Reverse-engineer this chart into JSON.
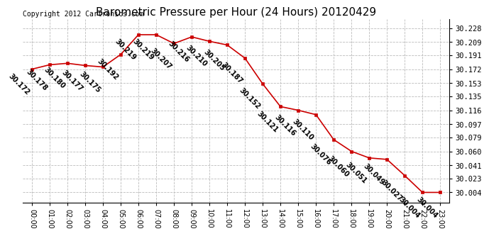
{
  "title": "Barometric Pressure per Hour (24 Hours) 20120429",
  "copyright": "Copyright 2012 Cartronics.com",
  "hours": [
    "00:00",
    "01:00",
    "02:00",
    "03:00",
    "04:00",
    "05:00",
    "06:00",
    "07:00",
    "08:00",
    "09:00",
    "10:00",
    "11:00",
    "12:00",
    "13:00",
    "14:00",
    "15:00",
    "16:00",
    "17:00",
    "18:00",
    "19:00",
    "20:00",
    "21:00",
    "22:00",
    "23:00"
  ],
  "values": [
    30.172,
    30.178,
    30.18,
    30.177,
    30.175,
    30.192,
    30.219,
    30.219,
    30.207,
    30.216,
    30.21,
    30.205,
    30.187,
    30.152,
    30.121,
    30.116,
    30.11,
    30.076,
    30.06,
    30.051,
    30.049,
    30.027,
    30.004,
    30.004
  ],
  "line_color": "#cc0000",
  "marker_color": "#cc0000",
  "bg_color": "#ffffff",
  "grid_color": "#bbbbbb",
  "yticks": [
    30.004,
    30.023,
    30.041,
    30.06,
    30.079,
    30.097,
    30.116,
    30.135,
    30.153,
    30.172,
    30.191,
    30.209,
    30.228
  ],
  "ylim": [
    29.99,
    30.24
  ],
  "title_fontsize": 11,
  "copyright_fontsize": 7,
  "label_fontsize": 7,
  "label_rotation": -45
}
